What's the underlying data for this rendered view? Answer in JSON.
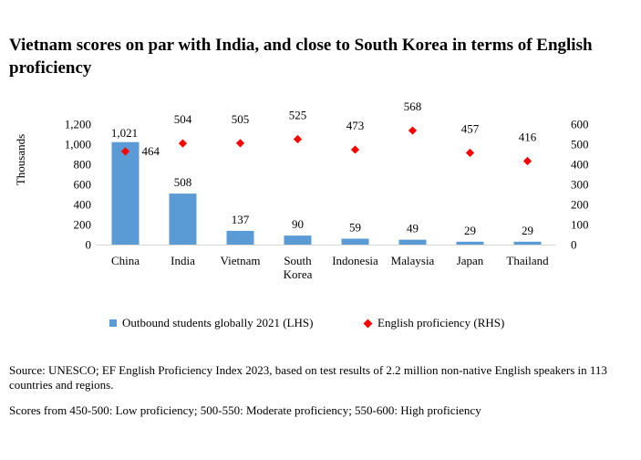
{
  "title": "Vietnam scores on par with India, and close to South Korea in terms of English proficiency",
  "chart_data": {
    "type": "bar",
    "categories": [
      "China",
      "India",
      "Vietnam",
      "South Korea",
      "Indonesia",
      "Malaysia",
      "Japan",
      "Thailand"
    ],
    "category_lines": [
      [
        "China"
      ],
      [
        "India"
      ],
      [
        "Vietnam"
      ],
      [
        "South",
        "Korea"
      ],
      [
        "Indonesia"
      ],
      [
        "Malaysia"
      ],
      [
        "Japan"
      ],
      [
        "Thailand"
      ]
    ],
    "series": [
      {
        "name": "Outbound students globally 2021 (LHS)",
        "type": "bar",
        "axis": "left",
        "values": [
          1021,
          508,
          137,
          90,
          59,
          49,
          29,
          29
        ],
        "labels": [
          "1,021",
          "508",
          "137",
          "90",
          "59",
          "49",
          "29",
          "29"
        ],
        "color": "#5b9bd5"
      },
      {
        "name": "English proficiency (RHS)",
        "type": "scatter",
        "marker": "diamond",
        "axis": "right",
        "values": [
          464,
          504,
          505,
          525,
          473,
          568,
          457,
          416
        ],
        "labels": [
          "464",
          "504",
          "505",
          "525",
          "473",
          "568",
          "457",
          "416"
        ],
        "color": "#ff0000"
      }
    ],
    "ylabel": "Thousands",
    "ylim_left": [
      0,
      1200
    ],
    "yticks_left": [
      "0",
      "200",
      "400",
      "600",
      "800",
      "1,000",
      "1,200"
    ],
    "ylim_right": [
      0,
      600
    ],
    "yticks_right": [
      "0",
      "100",
      "200",
      "300",
      "400",
      "500",
      "600"
    ],
    "legend_position": "bottom"
  },
  "legend": {
    "bar_label": "Outbound students globally 2021 (LHS)",
    "scatter_label": "English proficiency (RHS)"
  },
  "source": "Source: UNESCO; EF English Proficiency Index 2023, based on test results of 2.2 million non-native English speakers in 113 countries and regions.",
  "note": "Scores from 450-500: Low proficiency; 500-550: Moderate proficiency; 550-600: High proficiency"
}
